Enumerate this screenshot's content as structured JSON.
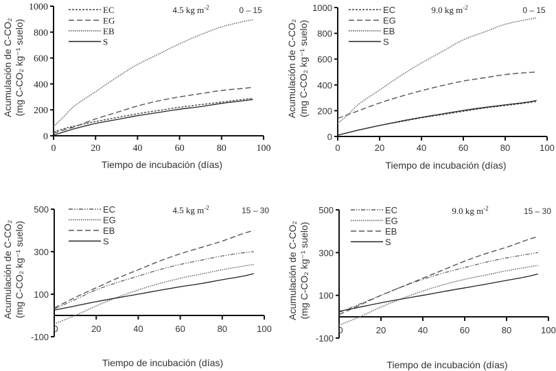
{
  "chart_data": [
    {
      "type": "line",
      "panel": "top-left",
      "annotation_rate": "4.5 kg m",
      "annotation_rate_sup": "-2",
      "annotation_depth": "0 – 15",
      "xlabel": "Tiempo de incubación (días)",
      "ylabel_line1": "Acumulación de C-CO₂",
      "ylabel_line2": "(mg C-CO₂ kg⁻¹ suelo)",
      "xlim": [
        0,
        100
      ],
      "ylim": [
        0,
        1000
      ],
      "xticks": [
        0,
        20,
        40,
        60,
        80,
        100
      ],
      "yticks": [
        0,
        200,
        400,
        600,
        800,
        1000
      ],
      "grid": false,
      "legend_position": "top-left",
      "x": [
        0,
        5,
        10,
        20,
        30,
        40,
        50,
        60,
        70,
        80,
        90,
        95
      ],
      "series": [
        {
          "name": "EC",
          "style": "dotted",
          "values": [
            30,
            55,
            75,
            110,
            140,
            170,
            195,
            220,
            240,
            260,
            280,
            290
          ]
        },
        {
          "name": "EG",
          "style": "dashed",
          "values": [
            20,
            45,
            70,
            130,
            180,
            230,
            270,
            300,
            325,
            350,
            365,
            375
          ]
        },
        {
          "name": "EB",
          "style": "fine-dotted",
          "values": [
            70,
            150,
            230,
            340,
            450,
            550,
            630,
            710,
            780,
            840,
            880,
            895
          ]
        },
        {
          "name": "S",
          "style": "solid",
          "values": [
            5,
            30,
            55,
            95,
            125,
            155,
            180,
            205,
            225,
            250,
            270,
            280
          ]
        }
      ]
    },
    {
      "type": "line",
      "panel": "top-right",
      "annotation_rate": "9.0 kg m",
      "annotation_rate_sup": "-2",
      "annotation_depth": "0 – 15",
      "xlabel": "Tiempo de incubación (días)",
      "ylabel_line1": "Acumulación de C-CO₂",
      "ylabel_line2": "(mg C-CO₂ kg⁻¹ suelo)",
      "xlim": [
        0,
        100
      ],
      "ylim": [
        0,
        1000
      ],
      "xticks": [
        0,
        20,
        40,
        60,
        80,
        100
      ],
      "yticks": [
        0,
        200,
        400,
        600,
        800,
        1000
      ],
      "grid": false,
      "legend_position": "top-left",
      "x": [
        0,
        5,
        10,
        20,
        30,
        40,
        50,
        60,
        70,
        80,
        90,
        95
      ],
      "series": [
        {
          "name": "EC",
          "style": "dotted",
          "values": [
            10,
            30,
            50,
            85,
            115,
            145,
            170,
            195,
            220,
            240,
            260,
            270
          ]
        },
        {
          "name": "EG",
          "style": "dashed",
          "values": [
            140,
            170,
            200,
            260,
            310,
            355,
            395,
            430,
            455,
            480,
            495,
            500
          ]
        },
        {
          "name": "EB",
          "style": "fine-dotted",
          "values": [
            100,
            170,
            250,
            360,
            470,
            570,
            660,
            750,
            810,
            870,
            905,
            920
          ]
        },
        {
          "name": "S",
          "style": "solid",
          "values": [
            10,
            30,
            50,
            85,
            118,
            148,
            175,
            202,
            225,
            245,
            265,
            280
          ]
        }
      ]
    },
    {
      "type": "line",
      "panel": "bottom-left",
      "annotation_rate": "4.5 kg m",
      "annotation_rate_sup": "-2",
      "annotation_depth": "15 – 30",
      "xlabel": "Tiempo de incubación (días)",
      "ylabel_line1": "Acumulación de C-CO₂",
      "ylabel_line2": "(mg C-CO₂ kg⁻¹ suelo)",
      "xlim": [
        0,
        100
      ],
      "ylim": [
        -100,
        500
      ],
      "xticks": [
        0,
        20,
        40,
        60,
        80,
        100
      ],
      "yticks": [
        -100,
        100,
        300,
        500
      ],
      "grid": false,
      "legend_position": "top-left",
      "x": [
        0,
        10,
        20,
        30,
        40,
        50,
        60,
        70,
        80,
        90,
        95
      ],
      "series": [
        {
          "name": "EC",
          "style": "dash-dot-dot",
          "values": [
            30,
            75,
            120,
            155,
            185,
            215,
            240,
            260,
            280,
            295,
            300
          ]
        },
        {
          "name": "EG",
          "style": "fine-dotted",
          "values": [
            -40,
            0,
            45,
            85,
            120,
            150,
            175,
            195,
            215,
            232,
            240
          ]
        },
        {
          "name": "EB",
          "style": "dashed",
          "values": [
            35,
            85,
            130,
            175,
            215,
            255,
            290,
            320,
            350,
            385,
            400
          ]
        },
        {
          "name": "S",
          "style": "solid",
          "values": [
            25,
            45,
            65,
            83,
            100,
            118,
            135,
            150,
            168,
            185,
            197
          ]
        }
      ]
    },
    {
      "type": "line",
      "panel": "bottom-right",
      "annotation_rate": "9.0 kg m",
      "annotation_rate_sup": "-2",
      "annotation_depth": "15 – 30",
      "xlabel": "Tiempo de incubación (días)",
      "ylabel_line1": "Acumulación de C-CO₂",
      "ylabel_line2": "(mg C-CO₂ kg⁻¹ suelo)",
      "xlim": [
        0,
        100
      ],
      "ylim": [
        -100,
        500
      ],
      "xticks": [
        0,
        20,
        40,
        60,
        80,
        100
      ],
      "yticks": [
        -100,
        100,
        300,
        500
      ],
      "grid": false,
      "legend_position": "top-left",
      "x": [
        0,
        10,
        20,
        30,
        40,
        50,
        60,
        70,
        80,
        90,
        95
      ],
      "series": [
        {
          "name": "EC",
          "style": "dash-dot-dot",
          "values": [
            20,
            60,
            100,
            140,
            175,
            205,
            230,
            255,
            275,
            292,
            300
          ]
        },
        {
          "name": "EG",
          "style": "fine-dotted",
          "values": [
            -40,
            0,
            45,
            85,
            120,
            150,
            175,
            195,
            215,
            232,
            240
          ]
        },
        {
          "name": "EB",
          "style": "dashed",
          "values": [
            10,
            55,
            100,
            140,
            180,
            220,
            260,
            295,
            325,
            360,
            375
          ]
        },
        {
          "name": "S",
          "style": "solid",
          "values": [
            25,
            45,
            65,
            83,
            100,
            118,
            135,
            152,
            170,
            188,
            200
          ]
        }
      ]
    }
  ]
}
